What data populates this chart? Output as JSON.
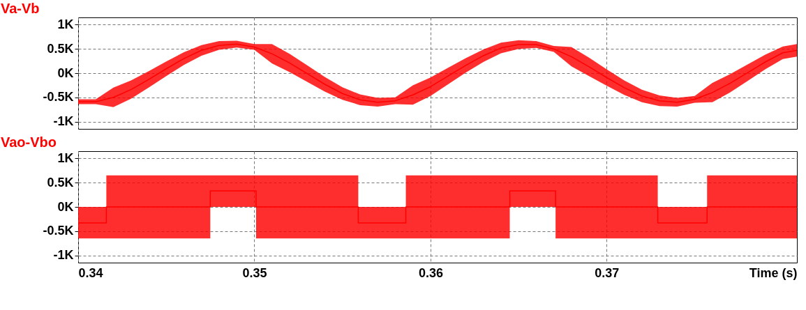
{
  "chart_data": [
    {
      "type": "line",
      "title": "Va-Vb",
      "xlim": [
        0.34,
        0.3808
      ],
      "xticks": [
        0.34,
        0.35,
        0.36,
        0.37
      ],
      "ylim": [
        -1.15,
        1.15
      ],
      "yticks": [
        {
          "value": 1,
          "label": "1K"
        },
        {
          "value": 0.5,
          "label": "0.5K"
        },
        {
          "value": 0,
          "label": "0K"
        },
        {
          "value": -0.5,
          "label": "-0.5K"
        },
        {
          "value": -1,
          "label": "-1K"
        }
      ],
      "grid": true,
      "tick_labels": "y",
      "legend": false,
      "series": [
        {
          "color": "#ff0000",
          "x": [
            0.34,
            0.341,
            0.342,
            0.343,
            0.344,
            0.345,
            0.346,
            0.347,
            0.348,
            0.349,
            0.35,
            0.351,
            0.352,
            0.353,
            0.354,
            0.355,
            0.356,
            0.357,
            0.358,
            0.359,
            0.36,
            0.361,
            0.362,
            0.363,
            0.364,
            0.365,
            0.366,
            0.367,
            0.368,
            0.369,
            0.37,
            0.371,
            0.372,
            0.373,
            0.374,
            0.375,
            0.376,
            0.377,
            0.378,
            0.379,
            0.38,
            0.3808
          ],
          "values": [
            -0.59,
            -0.59,
            -0.5,
            -0.34,
            -0.13,
            0.09,
            0.3,
            0.47,
            0.57,
            0.6,
            0.54,
            0.4,
            0.21,
            -0.01,
            -0.23,
            -0.42,
            -0.55,
            -0.6,
            -0.57,
            -0.45,
            -0.28,
            -0.06,
            0.16,
            0.36,
            0.52,
            0.59,
            0.59,
            0.5,
            0.34,
            0.13,
            -0.09,
            -0.3,
            -0.47,
            -0.57,
            -0.6,
            -0.54,
            -0.4,
            -0.21,
            0.01,
            0.23,
            0.42,
            0.47
          ],
          "lower": [
            -0.64,
            -0.64,
            -0.7,
            -0.53,
            -0.3,
            -0.06,
            0.17,
            0.36,
            0.48,
            0.53,
            0.48,
            0.2,
            0.02,
            -0.18,
            -0.38,
            -0.55,
            -0.66,
            -0.69,
            -0.64,
            -0.65,
            -0.47,
            -0.23,
            0.01,
            0.23,
            0.41,
            0.5,
            0.52,
            0.44,
            0.14,
            -0.06,
            -0.26,
            -0.45,
            -0.6,
            -0.68,
            -0.69,
            -0.61,
            -0.6,
            -0.4,
            -0.16,
            0.08,
            0.29,
            0.34
          ],
          "upper": [
            -0.54,
            -0.54,
            -0.3,
            -0.15,
            0.04,
            0.24,
            0.43,
            0.58,
            0.66,
            0.67,
            0.6,
            0.6,
            0.4,
            0.16,
            -0.08,
            -0.29,
            -0.44,
            -0.51,
            -0.5,
            -0.25,
            -0.09,
            0.11,
            0.31,
            0.49,
            0.63,
            0.68,
            0.66,
            0.56,
            0.54,
            0.32,
            0.08,
            -0.15,
            -0.34,
            -0.46,
            -0.51,
            -0.47,
            -0.2,
            -0.02,
            0.18,
            0.38,
            0.55,
            0.6
          ]
        }
      ]
    },
    {
      "type": "step",
      "title": "Vao-Vbo",
      "xlabel": "Time (s)",
      "xlim": [
        0.34,
        0.3808
      ],
      "xticks": [
        0.34,
        0.35,
        0.36,
        0.37
      ],
      "ylim": [
        -1.15,
        1.15
      ],
      "yticks": [
        {
          "value": 1,
          "label": "1K"
        },
        {
          "value": 0.5,
          "label": "0.5K"
        },
        {
          "value": 0,
          "label": "0K"
        },
        {
          "value": -0.5,
          "label": "-0.5K"
        },
        {
          "value": -1,
          "label": "-1K"
        }
      ],
      "grid": true,
      "legend": false,
      "series": [
        {
          "color": "#ff0000",
          "x": [
            0.34,
            0.3416,
            0.3475,
            0.3501,
            0.3559,
            0.3586,
            0.3645,
            0.3671,
            0.3729,
            0.3757,
            0.3808
          ],
          "values": [
            -0.33,
            0,
            0.33,
            0,
            -0.33,
            0,
            0.33,
            0,
            -0.33,
            0,
            0
          ],
          "lower": [
            -0.65,
            -0.65,
            0,
            -0.65,
            -0.65,
            -0.65,
            0,
            -0.65,
            -0.65,
            -0.65,
            -0.65
          ],
          "upper": [
            0,
            0.65,
            0.65,
            0.65,
            0,
            0.65,
            0.65,
            0.65,
            0,
            0.65,
            0.65
          ]
        }
      ]
    }
  ]
}
